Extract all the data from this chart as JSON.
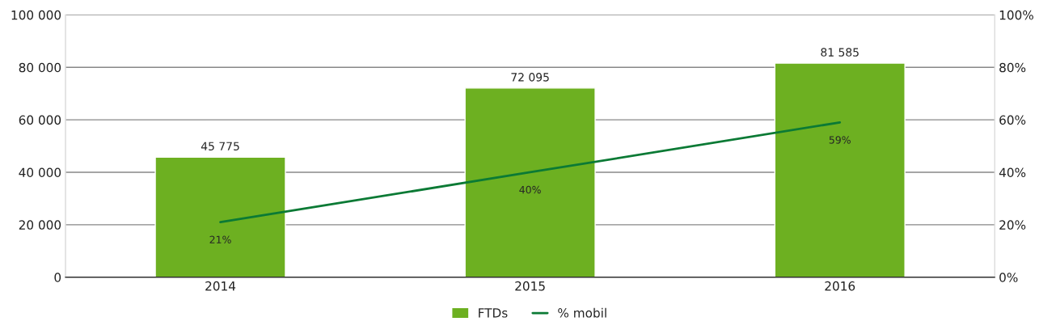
{
  "chart_data": {
    "type": "bar",
    "categories": [
      "2014",
      "2015",
      "2016"
    ],
    "series": [
      {
        "name": "FTDs",
        "color": "#6db021",
        "values": [
          45775,
          72095,
          81585
        ],
        "value_labels": [
          "45 775",
          "72 095",
          "81 585"
        ]
      },
      {
        "name": "% mobil",
        "type": "line",
        "axis": "y2",
        "color": "#0b7a35",
        "values": [
          21,
          40,
          59
        ],
        "value_labels": [
          "21%",
          "40%",
          "59%"
        ]
      }
    ],
    "ylim": [
      0,
      100000
    ],
    "yticks": [
      {
        "value": 0,
        "label": "0"
      },
      {
        "value": 20000,
        "label": "20 000"
      },
      {
        "value": 40000,
        "label": "40 000"
      },
      {
        "value": 60000,
        "label": "60 000"
      },
      {
        "value": 80000,
        "label": "80 000"
      },
      {
        "value": 100000,
        "label": "100 000"
      }
    ],
    "y2lim": [
      0,
      100
    ],
    "y2ticks": [
      {
        "value": 0,
        "label": "0%"
      },
      {
        "value": 20,
        "label": "20%"
      },
      {
        "value": 40,
        "label": "40%"
      },
      {
        "value": 60,
        "label": "60%"
      },
      {
        "value": 80,
        "label": "80%"
      },
      {
        "value": 100,
        "label": "100%"
      }
    ],
    "grid": "y",
    "legend": "bottom",
    "marker": "none",
    "line_style": "solid"
  }
}
